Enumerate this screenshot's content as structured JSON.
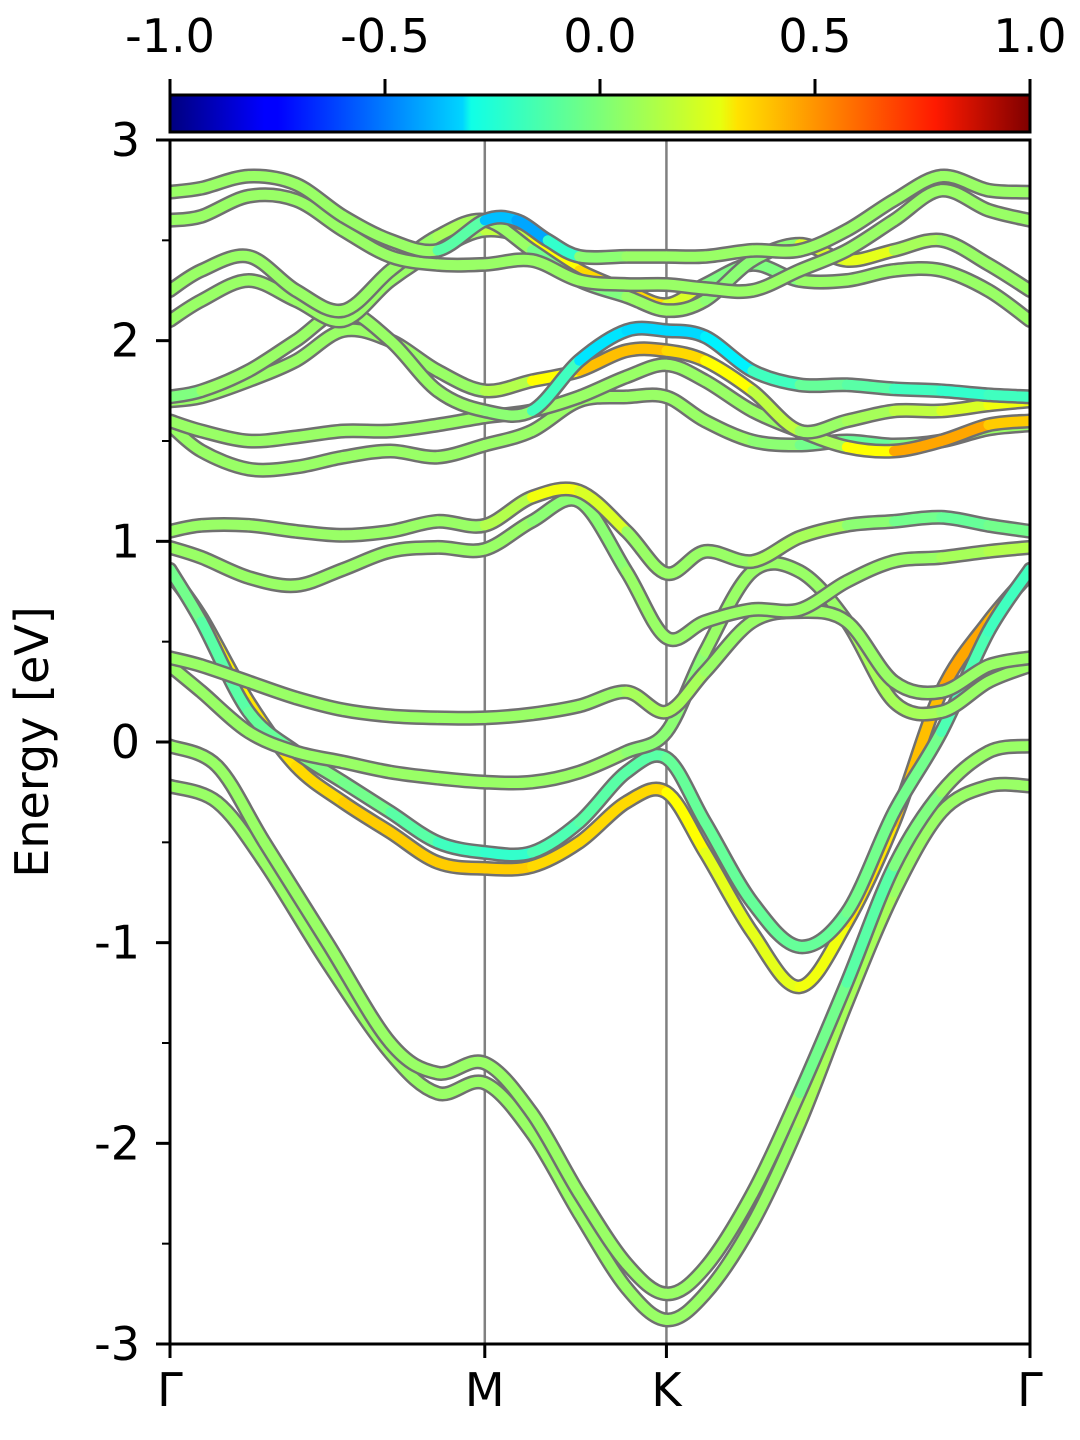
{
  "chart_data": {
    "type": "line",
    "title": "",
    "xlabel": "",
    "ylabel": "Energy [eV]",
    "ylim": [
      -3,
      3
    ],
    "yticks": [
      "-3",
      "-2",
      "-1",
      "0",
      "1",
      "2",
      "3"
    ],
    "k_points": [
      {
        "label": "Γ",
        "pos": 0.0
      },
      {
        "label": "M",
        "pos": 1.0
      },
      {
        "label": "K",
        "pos": 1.577
      },
      {
        "label": "Γ",
        "pos": 2.732
      }
    ],
    "colorbar": {
      "range": [
        -1.0,
        1.0
      ],
      "ticks": [
        "-1.0",
        "-0.5",
        "0.0",
        "0.5",
        "1.0"
      ],
      "colormap": "jet"
    },
    "band_color_value": 0.05,
    "band_outline_color": "#707070",
    "series": [
      {
        "x": [
          0.0,
          0.15,
          0.3,
          0.5,
          0.7,
          0.85,
          1.0,
          1.15,
          1.3,
          1.45,
          1.577,
          1.7,
          1.85,
          2.0,
          2.15,
          2.3,
          2.45,
          2.6,
          2.732
        ],
        "values": [
          -0.22,
          -0.3,
          -0.6,
          -1.1,
          -1.55,
          -1.75,
          -1.7,
          -1.95,
          -2.35,
          -2.72,
          -2.88,
          -2.75,
          -2.4,
          -1.9,
          -1.3,
          -0.75,
          -0.35,
          -0.22,
          -0.22
        ],
        "c": [
          0.05,
          0.05,
          0.05,
          0.05,
          0.05,
          0.05,
          0.05,
          0.05,
          0.05,
          0.05,
          0.05,
          0.05,
          0.05,
          0.05,
          0.1,
          0.05,
          0.05,
          0.05,
          0.05
        ]
      },
      {
        "x": [
          0.0,
          0.15,
          0.3,
          0.5,
          0.7,
          0.85,
          1.0,
          1.15,
          1.3,
          1.45,
          1.577,
          1.7,
          1.85,
          2.0,
          2.15,
          2.3,
          2.45,
          2.6,
          2.732
        ],
        "values": [
          -0.02,
          -0.12,
          -0.5,
          -1.0,
          -1.5,
          -1.65,
          -1.6,
          -1.85,
          -2.25,
          -2.6,
          -2.75,
          -2.62,
          -2.25,
          -1.75,
          -1.2,
          -0.62,
          -0.25,
          -0.05,
          -0.02
        ],
        "c": [
          0.05,
          0.05,
          0.05,
          0.05,
          0.05,
          0.05,
          0.05,
          0.05,
          0.05,
          0.05,
          0.05,
          0.05,
          0.05,
          0.05,
          -0.1,
          -0.05,
          0.05,
          0.05,
          0.05
        ]
      },
      {
        "x": [
          0.0,
          0.1,
          0.25,
          0.4,
          0.55,
          0.7,
          0.85,
          1.0,
          1.15,
          1.3,
          1.45,
          1.577,
          1.7,
          1.85,
          2.0,
          2.15,
          2.3,
          2.45,
          2.6,
          2.732
        ],
        "values": [
          0.84,
          0.62,
          0.2,
          -0.12,
          -0.3,
          -0.45,
          -0.6,
          -0.63,
          -0.62,
          -0.5,
          -0.3,
          -0.25,
          -0.55,
          -0.95,
          -1.22,
          -0.9,
          -0.4,
          0.25,
          0.6,
          0.84
        ],
        "c": [
          0.25,
          0.25,
          0.3,
          0.3,
          0.35,
          0.35,
          0.35,
          0.35,
          0.35,
          0.3,
          0.35,
          0.3,
          0.2,
          0.2,
          0.2,
          0.25,
          0.35,
          0.4,
          0.45,
          0.35
        ]
      },
      {
        "x": [
          0.0,
          0.1,
          0.25,
          0.4,
          0.55,
          0.7,
          0.85,
          1.0,
          1.15,
          1.3,
          1.45,
          1.577,
          1.7,
          1.85,
          2.0,
          2.15,
          2.3,
          2.45,
          2.6,
          2.732
        ],
        "values": [
          0.86,
          0.6,
          0.15,
          -0.05,
          -0.2,
          -0.35,
          -0.5,
          -0.55,
          -0.55,
          -0.4,
          -0.15,
          -0.08,
          -0.4,
          -0.8,
          -1.02,
          -0.85,
          -0.35,
          0.05,
          0.55,
          0.86
        ],
        "c": [
          0.0,
          -0.05,
          -0.1,
          0.0,
          0.0,
          -0.05,
          -0.1,
          -0.15,
          -0.15,
          -0.05,
          -0.1,
          -0.05,
          -0.05,
          -0.05,
          -0.05,
          -0.05,
          0.0,
          -0.05,
          -0.15,
          -0.1
        ]
      },
      {
        "x": [
          0.0,
          0.1,
          0.25,
          0.4,
          0.55,
          0.7,
          0.85,
          1.0,
          1.15,
          1.3,
          1.45,
          1.577,
          1.7,
          1.85,
          2.0,
          2.15,
          2.3,
          2.45,
          2.6,
          2.732
        ],
        "values": [
          0.38,
          0.25,
          0.05,
          -0.05,
          -0.1,
          -0.15,
          -0.18,
          -0.2,
          -0.2,
          -0.15,
          -0.05,
          0.05,
          0.45,
          0.85,
          0.85,
          0.6,
          0.2,
          0.15,
          0.3,
          0.38
        ],
        "c": [
          0.05,
          0.05,
          0.05,
          0.05,
          0.05,
          0.05,
          0.05,
          0.05,
          0.05,
          0.05,
          0.05,
          0.0,
          0.05,
          0.05,
          0.05,
          0.05,
          0.1,
          0.05,
          0.05,
          0.05
        ]
      },
      {
        "x": [
          0.0,
          0.1,
          0.25,
          0.4,
          0.55,
          0.7,
          0.85,
          1.0,
          1.15,
          1.3,
          1.45,
          1.577,
          1.7,
          1.85,
          2.0,
          2.15,
          2.3,
          2.45,
          2.6,
          2.732
        ],
        "values": [
          0.42,
          0.38,
          0.3,
          0.22,
          0.16,
          0.13,
          0.12,
          0.12,
          0.14,
          0.18,
          0.25,
          0.15,
          0.35,
          0.6,
          0.65,
          0.6,
          0.3,
          0.25,
          0.38,
          0.42
        ],
        "c": [
          0.05,
          0.05,
          0.05,
          0.05,
          0.05,
          0.05,
          0.05,
          0.05,
          0.05,
          0.05,
          0.05,
          0.1,
          0.05,
          0.05,
          0.05,
          0.05,
          0.05,
          0.05,
          0.05,
          0.05
        ]
      },
      {
        "x": [
          0.0,
          0.1,
          0.25,
          0.4,
          0.55,
          0.7,
          0.85,
          1.0,
          1.15,
          1.3,
          1.45,
          1.577,
          1.7,
          1.85,
          2.0,
          2.15,
          2.3,
          2.45,
          2.6,
          2.732
        ],
        "values": [
          0.97,
          0.92,
          0.82,
          0.78,
          0.86,
          0.95,
          0.97,
          0.96,
          1.1,
          1.2,
          0.85,
          0.52,
          0.6,
          0.66,
          0.66,
          0.8,
          0.9,
          0.92,
          0.95,
          0.97
        ],
        "c": [
          0.05,
          0.05,
          0.05,
          0.05,
          0.05,
          0.05,
          0.05,
          0.05,
          0.05,
          0.0,
          0.05,
          0.05,
          0.05,
          0.05,
          0.05,
          0.05,
          0.05,
          0.05,
          0.1,
          0.1
        ]
      },
      {
        "x": [
          0.0,
          0.1,
          0.25,
          0.4,
          0.55,
          0.7,
          0.85,
          1.0,
          1.15,
          1.3,
          1.45,
          1.577,
          1.7,
          1.85,
          2.0,
          2.15,
          2.3,
          2.45,
          2.6,
          2.732
        ],
        "values": [
          1.05,
          1.08,
          1.08,
          1.05,
          1.03,
          1.05,
          1.1,
          1.08,
          1.22,
          1.25,
          1.05,
          0.84,
          0.95,
          0.9,
          1.02,
          1.08,
          1.1,
          1.12,
          1.08,
          1.05
        ],
        "c": [
          0.05,
          0.05,
          0.05,
          0.05,
          0.05,
          0.05,
          0.05,
          0.05,
          0.15,
          0.3,
          0.05,
          0.05,
          0.05,
          0.05,
          0.1,
          0.05,
          0.0,
          -0.05,
          -0.05,
          0.0
        ]
      },
      {
        "x": [
          0.0,
          0.1,
          0.25,
          0.4,
          0.55,
          0.7,
          0.85,
          1.0,
          1.15,
          1.3,
          1.45,
          1.577,
          1.7,
          1.85,
          2.0,
          2.15,
          2.3,
          2.45,
          2.6,
          2.732
        ],
        "values": [
          1.58,
          1.45,
          1.36,
          1.37,
          1.42,
          1.45,
          1.42,
          1.48,
          1.55,
          1.7,
          1.72,
          1.72,
          1.6,
          1.5,
          1.48,
          1.5,
          1.48,
          1.5,
          1.56,
          1.58
        ],
        "c": [
          0.05,
          0.05,
          0.05,
          0.05,
          0.05,
          0.05,
          0.05,
          0.05,
          0.05,
          0.05,
          0.05,
          0.05,
          0.05,
          0.05,
          0.0,
          -0.05,
          -0.05,
          0.05,
          0.05,
          0.05
        ]
      },
      {
        "x": [
          0.0,
          0.1,
          0.25,
          0.4,
          0.55,
          0.7,
          0.85,
          1.0,
          1.15,
          1.3,
          1.45,
          1.577,
          1.7,
          1.85,
          2.0,
          2.15,
          2.3,
          2.45,
          2.6,
          2.732
        ],
        "values": [
          1.6,
          1.55,
          1.5,
          1.52,
          1.55,
          1.55,
          1.58,
          1.62,
          1.65,
          1.72,
          1.82,
          1.88,
          1.8,
          1.65,
          1.55,
          1.47,
          1.45,
          1.5,
          1.58,
          1.6
        ],
        "c": [
          0.05,
          0.05,
          0.05,
          0.05,
          0.05,
          0.05,
          0.05,
          0.05,
          0.05,
          0.05,
          0.05,
          0.05,
          0.05,
          0.05,
          0.05,
          0.1,
          0.4,
          0.45,
          0.4,
          0.3
        ]
      },
      {
        "x": [
          0.0,
          0.1,
          0.25,
          0.4,
          0.55,
          0.7,
          0.85,
          1.0,
          1.15,
          1.3,
          1.45,
          1.577,
          1.7,
          1.85,
          2.0,
          2.15,
          2.3,
          2.45,
          2.6,
          2.732
        ],
        "values": [
          1.7,
          1.72,
          1.8,
          1.9,
          2.05,
          2.0,
          1.85,
          1.75,
          1.8,
          1.85,
          1.95,
          1.95,
          1.9,
          1.75,
          1.55,
          1.6,
          1.65,
          1.65,
          1.68,
          1.7
        ],
        "c": [
          0.05,
          0.05,
          0.05,
          0.05,
          0.05,
          0.05,
          0.05,
          0.05,
          0.15,
          0.35,
          0.4,
          0.35,
          0.3,
          0.2,
          0.05,
          0.05,
          0.1,
          0.15,
          0.2,
          0.25
        ]
      },
      {
        "x": [
          0.0,
          0.1,
          0.25,
          0.4,
          0.55,
          0.7,
          0.85,
          1.0,
          1.15,
          1.3,
          1.45,
          1.577,
          1.7,
          1.85,
          2.0,
          2.15,
          2.3,
          2.45,
          2.6,
          2.732
        ],
        "values": [
          1.72,
          1.75,
          1.85,
          2.0,
          2.15,
          2.0,
          1.75,
          1.65,
          1.65,
          1.9,
          2.05,
          2.05,
          2.02,
          1.85,
          1.78,
          1.78,
          1.76,
          1.75,
          1.73,
          1.72
        ],
        "c": [
          -0.05,
          0.05,
          0.05,
          0.05,
          0.05,
          0.05,
          0.05,
          0.05,
          0.0,
          -0.25,
          -0.35,
          -0.3,
          -0.35,
          -0.2,
          -0.05,
          -0.05,
          -0.1,
          -0.15,
          -0.15,
          -0.1
        ]
      },
      {
        "x": [
          0.0,
          0.1,
          0.25,
          0.4,
          0.55,
          0.7,
          0.85,
          1.0,
          1.15,
          1.3,
          1.45,
          1.577,
          1.7,
          1.85,
          2.0,
          2.15,
          2.3,
          2.45,
          2.6,
          2.732
        ],
        "values": [
          2.1,
          2.2,
          2.3,
          2.2,
          2.1,
          2.3,
          2.45,
          2.55,
          2.5,
          2.35,
          2.25,
          2.18,
          2.28,
          2.38,
          2.3,
          2.3,
          2.35,
          2.35,
          2.25,
          2.1
        ],
        "c": [
          0.05,
          0.05,
          0.05,
          0.05,
          0.05,
          0.05,
          0.05,
          0.05,
          0.2,
          0.3,
          0.35,
          0.3,
          0.05,
          -0.05,
          0.05,
          0.05,
          0.05,
          0.05,
          0.05,
          0.05
        ]
      },
      {
        "x": [
          0.0,
          0.1,
          0.25,
          0.4,
          0.55,
          0.7,
          0.85,
          1.0,
          1.15,
          1.3,
          1.45,
          1.577,
          1.7,
          1.85,
          2.0,
          2.15,
          2.3,
          2.45,
          2.6,
          2.732
        ],
        "values": [
          2.25,
          2.35,
          2.42,
          2.25,
          2.15,
          2.35,
          2.52,
          2.6,
          2.45,
          2.3,
          2.22,
          2.15,
          2.2,
          2.4,
          2.48,
          2.4,
          2.45,
          2.5,
          2.38,
          2.25
        ],
        "c": [
          0.05,
          0.05,
          0.05,
          0.05,
          0.05,
          0.05,
          0.05,
          0.1,
          0.0,
          -0.05,
          0.05,
          0.05,
          0.05,
          0.0,
          0.05,
          0.3,
          0.1,
          0.05,
          0.05,
          0.05
        ]
      },
      {
        "x": [
          0.0,
          0.1,
          0.25,
          0.4,
          0.55,
          0.7,
          0.85,
          1.0,
          1.15,
          1.3,
          1.45,
          1.577,
          1.7,
          1.85,
          2.0,
          2.15,
          2.3,
          2.45,
          2.6,
          2.732
        ],
        "values": [
          2.6,
          2.62,
          2.72,
          2.7,
          2.55,
          2.42,
          2.38,
          2.38,
          2.4,
          2.3,
          2.28,
          2.28,
          2.26,
          2.25,
          2.35,
          2.45,
          2.6,
          2.75,
          2.65,
          2.6
        ],
        "c": [
          0.05,
          0.05,
          0.05,
          0.05,
          0.05,
          0.05,
          0.05,
          0.05,
          0.05,
          0.05,
          0.05,
          0.05,
          0.05,
          0.05,
          0.05,
          0.05,
          0.05,
          0.05,
          0.05,
          0.05
        ]
      },
      {
        "x": [
          0.0,
          0.1,
          0.25,
          0.4,
          0.55,
          0.7,
          0.85,
          1.0,
          1.1,
          1.2,
          1.3,
          1.45,
          1.577,
          1.7,
          1.85,
          2.0,
          2.15,
          2.3,
          2.45,
          2.6,
          2.732
        ],
        "values": [
          2.74,
          2.76,
          2.82,
          2.78,
          2.62,
          2.5,
          2.45,
          2.6,
          2.6,
          2.5,
          2.42,
          2.42,
          2.42,
          2.42,
          2.45,
          2.45,
          2.55,
          2.7,
          2.82,
          2.75,
          2.74
        ],
        "c": [
          0.05,
          0.05,
          0.05,
          0.05,
          0.05,
          0.05,
          0.05,
          -0.2,
          -0.55,
          -0.3,
          0.0,
          0.05,
          0.05,
          0.05,
          0.05,
          0.05,
          0.05,
          0.05,
          0.05,
          0.05,
          0.05
        ]
      }
    ]
  }
}
